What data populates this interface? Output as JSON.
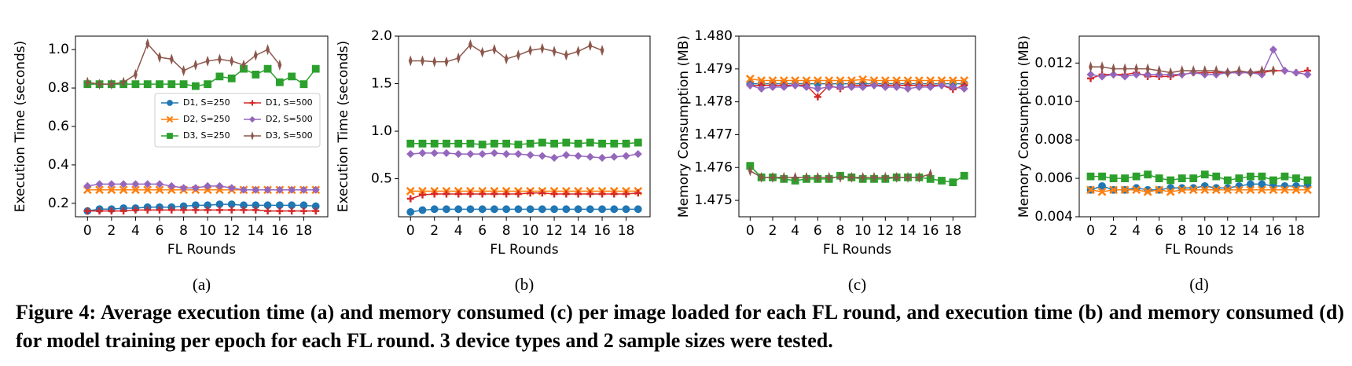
{
  "chart_data": [
    {
      "type": "line",
      "label": "(a)",
      "xlabel": "FL Rounds",
      "ylabel": "Execution Time (seconds)",
      "x": [
        0,
        1,
        2,
        3,
        4,
        5,
        6,
        7,
        8,
        9,
        10,
        11,
        12,
        13,
        14,
        15,
        16,
        17,
        18,
        19
      ],
      "xlim": [
        -1,
        20
      ],
      "xticks": [
        0,
        2,
        4,
        6,
        8,
        10,
        12,
        14,
        16,
        18
      ],
      "ylim": [
        0.13,
        1.07
      ],
      "yticks": [
        0.2,
        0.4,
        0.6,
        0.8,
        {
          "value": 1.0,
          "label": "1.0"
        }
      ],
      "legend": "center right",
      "series": [
        {
          "name": "D1, S=250",
          "color": "#1f77b4",
          "marker": "o",
          "values": [
            0.16,
            0.17,
            0.17,
            0.175,
            0.175,
            0.18,
            0.18,
            0.18,
            0.185,
            0.19,
            0.19,
            0.195,
            0.195,
            0.19,
            0.19,
            0.19,
            0.19,
            0.19,
            0.19,
            0.185
          ]
        },
        {
          "name": "D2, S=250",
          "color": "#ff7f0e",
          "marker": "x",
          "values": [
            0.27,
            0.27,
            0.27,
            0.27,
            0.27,
            0.27,
            0.27,
            0.27,
            0.27,
            0.27,
            0.27,
            0.27,
            0.27,
            0.27,
            0.27,
            0.27,
            0.27,
            0.27,
            0.27,
            0.27
          ]
        },
        {
          "name": "D3, S=250",
          "color": "#2ca02c",
          "marker": "s",
          "values": [
            0.82,
            0.82,
            0.82,
            0.82,
            0.82,
            0.82,
            0.82,
            0.82,
            0.82,
            0.81,
            0.82,
            0.86,
            0.85,
            0.9,
            0.87,
            0.9,
            0.83,
            0.86,
            0.82,
            0.9
          ]
        },
        {
          "name": "D1, S=500",
          "color": "#d62728",
          "marker": "+",
          "values": [
            0.16,
            0.16,
            0.16,
            0.16,
            0.165,
            0.165,
            0.165,
            0.165,
            0.165,
            0.165,
            0.165,
            0.165,
            0.165,
            0.165,
            0.165,
            0.16,
            0.16,
            0.16,
            0.16,
            0.16
          ]
        },
        {
          "name": "D2, S=500",
          "color": "#9467bd",
          "marker": "D",
          "values": [
            0.29,
            0.3,
            0.3,
            0.3,
            0.3,
            0.3,
            0.3,
            0.29,
            0.28,
            0.28,
            0.29,
            0.29,
            0.28,
            0.27,
            0.27,
            0.27,
            0.27,
            0.27,
            0.27,
            0.27
          ]
        },
        {
          "name": "D3, S=500",
          "color": "#8c564b",
          "marker": "*",
          "values": [
            0.83,
            0.82,
            0.82,
            0.83,
            0.87,
            1.03,
            0.96,
            0.95,
            0.89,
            0.92,
            0.94,
            0.95,
            0.94,
            0.92,
            0.97,
            1.0,
            0.92,
            null,
            null,
            null
          ]
        }
      ]
    },
    {
      "type": "line",
      "label": "(b)",
      "xlabel": "FL Rounds",
      "ylabel": "Execution Time (seconds)",
      "x": [
        0,
        1,
        2,
        3,
        4,
        5,
        6,
        7,
        8,
        9,
        10,
        11,
        12,
        13,
        14,
        15,
        16,
        17,
        18,
        19
      ],
      "xlim": [
        -1,
        20
      ],
      "xticks": [
        0,
        2,
        4,
        6,
        8,
        10,
        12,
        14,
        16,
        18
      ],
      "ylim": [
        0.1,
        2.0
      ],
      "yticks": [
        0.5,
        {
          "value": 1.0,
          "label": "1.0"
        },
        1.5,
        {
          "value": 2.0,
          "label": "2.0"
        }
      ],
      "series": [
        {
          "name": "D1, S=250",
          "color": "#1f77b4",
          "marker": "o",
          "values": [
            0.15,
            0.17,
            0.18,
            0.18,
            0.18,
            0.18,
            0.18,
            0.18,
            0.18,
            0.18,
            0.18,
            0.18,
            0.18,
            0.18,
            0.18,
            0.18,
            0.18,
            0.18,
            0.18,
            0.18
          ]
        },
        {
          "name": "D2, S=250",
          "color": "#ff7f0e",
          "marker": "x",
          "values": [
            0.37,
            0.37,
            0.37,
            0.37,
            0.37,
            0.37,
            0.37,
            0.37,
            0.37,
            0.37,
            0.37,
            0.37,
            0.37,
            0.37,
            0.37,
            0.37,
            0.37,
            0.37,
            0.37,
            0.37
          ]
        },
        {
          "name": "D3, S=250",
          "color": "#2ca02c",
          "marker": "s",
          "values": [
            0.87,
            0.87,
            0.87,
            0.87,
            0.87,
            0.87,
            0.86,
            0.87,
            0.87,
            0.86,
            0.87,
            0.88,
            0.87,
            0.88,
            0.87,
            0.88,
            0.87,
            0.87,
            0.87,
            0.88
          ]
        },
        {
          "name": "D1, S=500",
          "color": "#d62728",
          "marker": "+",
          "values": [
            0.29,
            0.33,
            0.34,
            0.34,
            0.34,
            0.34,
            0.34,
            0.34,
            0.34,
            0.34,
            0.35,
            0.35,
            0.34,
            0.34,
            0.34,
            0.34,
            0.34,
            0.34,
            0.34,
            0.35
          ]
        },
        {
          "name": "D2, S=500",
          "color": "#9467bd",
          "marker": "D",
          "values": [
            0.76,
            0.77,
            0.77,
            0.77,
            0.76,
            0.76,
            0.76,
            0.77,
            0.76,
            0.76,
            0.75,
            0.74,
            0.72,
            0.75,
            0.74,
            0.73,
            0.72,
            0.73,
            0.74,
            0.76
          ]
        },
        {
          "name": "D3, S=500",
          "color": "#8c564b",
          "marker": "*",
          "values": [
            1.74,
            1.74,
            1.73,
            1.73,
            1.77,
            1.91,
            1.83,
            1.86,
            1.76,
            1.8,
            1.85,
            1.87,
            1.84,
            1.8,
            1.84,
            1.9,
            1.85,
            null,
            null,
            null
          ]
        }
      ]
    },
    {
      "type": "line",
      "label": "(c)",
      "xlabel": "FL Rounds",
      "ylabel": "Memory Consumption (MB)",
      "x": [
        0,
        1,
        2,
        3,
        4,
        5,
        6,
        7,
        8,
        9,
        10,
        11,
        12,
        13,
        14,
        15,
        16,
        17,
        18,
        19
      ],
      "xlim": [
        -1,
        20
      ],
      "xticks": [
        0,
        2,
        4,
        6,
        8,
        10,
        12,
        14,
        16,
        18
      ],
      "ylim": [
        1.4745,
        1.48
      ],
      "yticks": [
        1.475,
        1.476,
        1.477,
        1.478,
        1.479,
        {
          "value": 1.48,
          "label": "1.480"
        }
      ],
      "series": [
        {
          "name": "D1, S=250",
          "color": "#1f77b4",
          "marker": "o",
          "values": [
            1.47855,
            1.47855,
            1.47855,
            1.47855,
            1.47855,
            1.47855,
            1.47855,
            1.47855,
            1.47855,
            1.47855,
            1.47855,
            1.47855,
            1.47855,
            1.47855,
            1.47855,
            1.47855,
            1.47855,
            1.47855,
            1.47855,
            1.47855
          ]
        },
        {
          "name": "D2, S=250",
          "color": "#ff7f0e",
          "marker": "x",
          "values": [
            1.4787,
            1.47865,
            1.47865,
            1.47865,
            1.47865,
            1.47865,
            1.47865,
            1.47865,
            1.47865,
            1.47865,
            1.47868,
            1.47865,
            1.47865,
            1.47865,
            1.47865,
            1.47865,
            1.47865,
            1.47865,
            1.47865,
            1.47865
          ]
        },
        {
          "name": "D3, S=250",
          "color": "#2ca02c",
          "marker": "s",
          "values": [
            1.47605,
            1.4757,
            1.4757,
            1.47565,
            1.4756,
            1.47565,
            1.47565,
            1.47565,
            1.47575,
            1.4757,
            1.47565,
            1.47565,
            1.47565,
            1.4757,
            1.4757,
            1.4757,
            1.47565,
            1.4756,
            1.47555,
            1.47575
          ]
        },
        {
          "name": "D1, S=500",
          "color": "#d62728",
          "marker": "+",
          "values": [
            1.4785,
            1.4785,
            1.4785,
            1.4785,
            1.4785,
            1.4785,
            1.47815,
            1.4785,
            1.4784,
            1.4785,
            1.4785,
            1.4785,
            1.4785,
            1.4785,
            1.4785,
            1.4785,
            1.4785,
            1.4785,
            1.47838,
            1.4785
          ]
        },
        {
          "name": "D2, S=500",
          "color": "#9467bd",
          "marker": "D",
          "values": [
            1.4785,
            1.4784,
            1.47845,
            1.47845,
            1.4785,
            1.47845,
            1.4784,
            1.47845,
            1.47845,
            1.47845,
            1.47845,
            1.4785,
            1.47845,
            1.47845,
            1.4784,
            1.47845,
            1.47845,
            1.4785,
            1.47845,
            1.4784
          ]
        },
        {
          "name": "D3, S=500",
          "color": "#8c564b",
          "marker": "*",
          "values": [
            1.4759,
            1.4757,
            1.4757,
            1.4757,
            1.4757,
            1.4757,
            1.4757,
            1.4757,
            1.4757,
            1.4757,
            1.4757,
            1.4757,
            1.4757,
            1.4757,
            1.4757,
            1.4757,
            1.4758,
            null,
            null,
            null
          ]
        }
      ]
    },
    {
      "type": "line",
      "label": "(d)",
      "xlabel": "FL Rounds",
      "ylabel": "Memory Consumption (MB)",
      "x": [
        0,
        1,
        2,
        3,
        4,
        5,
        6,
        7,
        8,
        9,
        10,
        11,
        12,
        13,
        14,
        15,
        16,
        17,
        18,
        19
      ],
      "xlim": [
        -1,
        20
      ],
      "xticks": [
        0,
        2,
        4,
        6,
        8,
        10,
        12,
        14,
        16,
        18
      ],
      "ylim": [
        0.004,
        0.0134
      ],
      "yticks": [
        0.004,
        0.006,
        0.008,
        {
          "value": 0.01,
          "label": "0.010"
        },
        0.012
      ],
      "series": [
        {
          "name": "D1, S=250",
          "color": "#1f77b4",
          "marker": "o",
          "values": [
            0.0054,
            0.0056,
            0.0054,
            0.0054,
            0.0055,
            0.0054,
            0.0054,
            0.0055,
            0.0055,
            0.0055,
            0.0056,
            0.0055,
            0.0055,
            0.0056,
            0.0057,
            0.0057,
            0.0056,
            0.0056,
            0.0056,
            0.0056
          ]
        },
        {
          "name": "D2, S=250",
          "color": "#ff7f0e",
          "marker": "x",
          "values": [
            0.0054,
            0.0053,
            0.0054,
            0.0054,
            0.0054,
            0.0053,
            0.0054,
            0.0053,
            0.0054,
            0.0054,
            0.0054,
            0.0054,
            0.0054,
            0.0054,
            0.0054,
            0.0054,
            0.0054,
            0.0054,
            0.0054,
            0.0054
          ]
        },
        {
          "name": "D3, S=250",
          "color": "#2ca02c",
          "marker": "s",
          "values": [
            0.0061,
            0.0061,
            0.006,
            0.006,
            0.0061,
            0.0062,
            0.006,
            0.0059,
            0.006,
            0.006,
            0.0062,
            0.0061,
            0.0059,
            0.006,
            0.0061,
            0.0061,
            0.0059,
            0.0061,
            0.006,
            0.0059
          ]
        },
        {
          "name": "D1, S=500",
          "color": "#d62728",
          "marker": "+",
          "values": [
            0.0112,
            0.0114,
            0.0114,
            0.0114,
            0.0115,
            0.0113,
            0.0113,
            0.0113,
            0.0114,
            0.0115,
            0.0115,
            0.0115,
            0.0115,
            0.0115,
            0.0115,
            0.0115,
            0.0116,
            0.0116,
            0.0115,
            0.0116
          ]
        },
        {
          "name": "D2, S=500",
          "color": "#9467bd",
          "marker": "D",
          "values": [
            0.0114,
            0.0113,
            0.0114,
            0.0113,
            0.0114,
            0.0114,
            0.0114,
            0.0114,
            0.0114,
            0.0115,
            0.0114,
            0.0114,
            0.0115,
            0.0115,
            0.0115,
            0.0114,
            0.0127,
            0.0116,
            0.0115,
            0.0114
          ]
        },
        {
          "name": "D3, S=500",
          "color": "#8c564b",
          "marker": "*",
          "values": [
            0.0118,
            0.0118,
            0.0117,
            0.0117,
            0.0117,
            0.0117,
            0.0116,
            0.0115,
            0.0116,
            0.0116,
            0.0116,
            0.0116,
            0.0115,
            0.0116,
            0.0115,
            0.0116,
            0.0116,
            null,
            null,
            null
          ]
        }
      ]
    }
  ],
  "caption": "Figure 4: Average execution time (a) and memory consumed (c) per image loaded for each FL round, and execution time (b) and memory consumed (d) for model training per epoch for each FL round. 3 device types and 2 sample sizes were tested."
}
